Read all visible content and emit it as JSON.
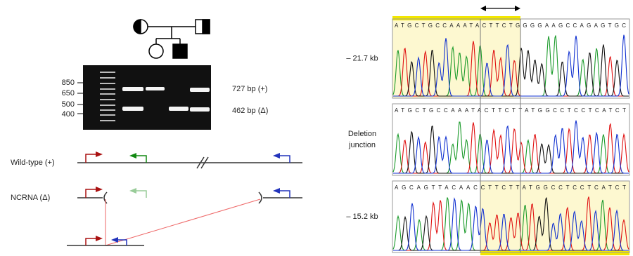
{
  "gel": {
    "ladder_labels": [
      "850",
      "650",
      "500",
      "400"
    ],
    "band_labels": [
      "727 bp (+)",
      "462 bp (Δ)"
    ]
  },
  "schematic": {
    "wild_type_label": "Wild-type (+)",
    "deletion_label": "NCRNA (Δ)"
  },
  "chromatograms": [
    {
      "label": [
        "– 21.7 kb"
      ],
      "sequence": "ATGCTGCCAAATACTTCTGGGGAAGCCAGAGTGC"
    },
    {
      "label": [
        "Deletion",
        "junction"
      ],
      "sequence": "ATGCTGCCAAATACTTCTTATGGCCTCCTCATCT"
    },
    {
      "label": [
        "– 15.2 kb"
      ],
      "sequence": "AGCAGTTACAACCTTCTTATGGCCTCCTCATCT"
    }
  ]
}
